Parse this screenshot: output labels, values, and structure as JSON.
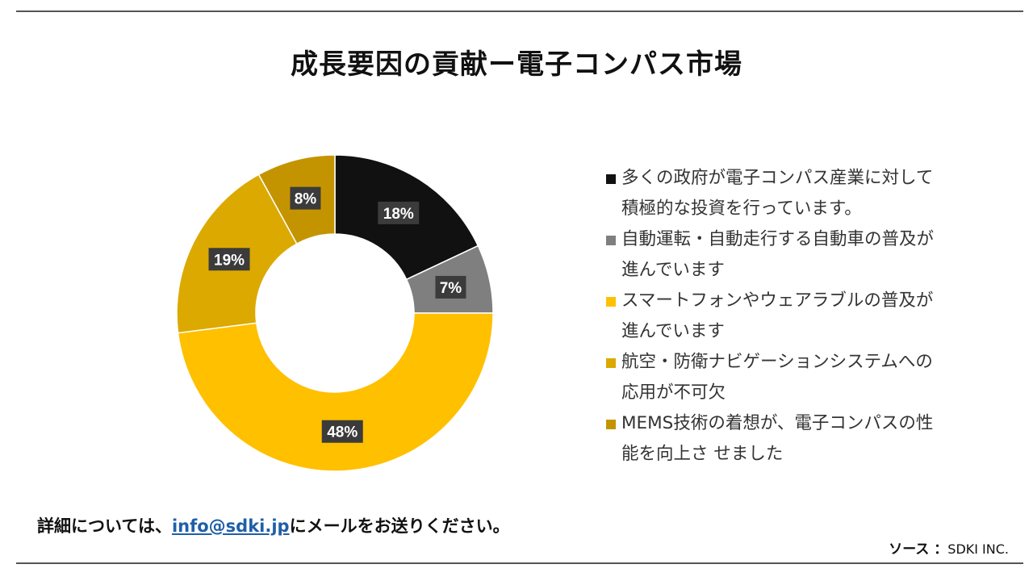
{
  "title": "成長要因の貢献ー電子コンパス市場",
  "chart_data": {
    "type": "pie",
    "style": "donut",
    "slices": [
      {
        "label": "多くの政府が電子コンパス産業に対して積極的な投資を行っています。",
        "value": 18,
        "display": "18%",
        "color": "#111111"
      },
      {
        "label": "自動運転・自動走行する自動車の普及が進んでいます",
        "value": 7,
        "display": "7%",
        "color": "#7f7f7f"
      },
      {
        "label": "スマートフォンやウェアラブルの普及が進んでいます",
        "value": 48,
        "display": "48%",
        "color": "#ffc000"
      },
      {
        "label": "航空・防衛ナビゲーションシステムへの応用が不可欠",
        "value": 19,
        "display": "19%",
        "color": "#dba900"
      },
      {
        "label": "MEMS技術の着想が、電子コンパスの性能を向上さ せました",
        "value": 8,
        "display": "8%",
        "color": "#c49400"
      }
    ],
    "legend_position": "right"
  },
  "legend": [
    {
      "line1": "多くの政府が電子コンパス産業に対して",
      "line2": "積極的な投資を行っています。",
      "color": "#111111"
    },
    {
      "line1": "自動運転・自動走行する自動車の普及が",
      "line2": "進んでいます",
      "color": "#7f7f7f"
    },
    {
      "line1": "スマートフォンやウェアラブルの普及が",
      "line2": "進んでいます",
      "color": "#ffc000"
    },
    {
      "line1": "航空・防衛ナビゲーションシステムへの",
      "line2": "応用が不可欠",
      "color": "#dba900"
    },
    {
      "line1": "MEMS技術の着想が、電子コンパスの性",
      "line2": "能を向上さ せました",
      "color": "#c49400"
    }
  ],
  "footer": {
    "prefix": "詳細については、",
    "email": "info@sdki.jp",
    "suffix": "にメールをお送りください。"
  },
  "source": {
    "label": "ソース ：",
    "value": "SDKI INC."
  }
}
